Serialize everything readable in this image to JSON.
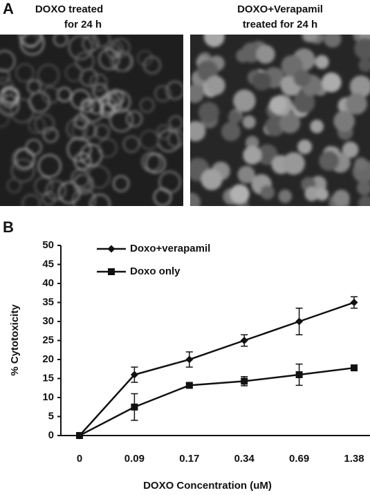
{
  "panel_a": {
    "label": "A",
    "images": [
      {
        "caption": [
          "DOXO treated",
          "for 24 h"
        ]
      },
      {
        "caption": [
          "DOXO+Verapamil",
          "treated for 24 h"
        ]
      }
    ]
  },
  "chart_data": {
    "type": "line",
    "panel_label": "B",
    "categories": [
      "0",
      "0.09",
      "0.17",
      "0.34",
      "0.69",
      "1.38"
    ],
    "series": [
      {
        "name": "Doxo+verapamil",
        "color": "#111111",
        "marker": "diamond",
        "values": [
          0,
          16,
          20,
          25,
          30,
          35
        ],
        "errors": [
          0,
          2,
          2,
          1.5,
          3.5,
          1.5
        ]
      },
      {
        "name": "Doxo only",
        "color": "#111111",
        "marker": "square",
        "values": [
          0,
          7.5,
          13.2,
          14.3,
          16,
          17.8
        ],
        "errors": [
          0,
          3.5,
          0.5,
          1.2,
          2.8,
          0.5
        ]
      }
    ],
    "ylim": [
      0,
      50
    ],
    "yticks": [
      0,
      5,
      10,
      15,
      20,
      25,
      30,
      35,
      40,
      45,
      50
    ],
    "y_label": "% Cytotoxicity",
    "x_label": "DOXO Concentration (uM)",
    "legend": "upper left",
    "grid": false
  }
}
